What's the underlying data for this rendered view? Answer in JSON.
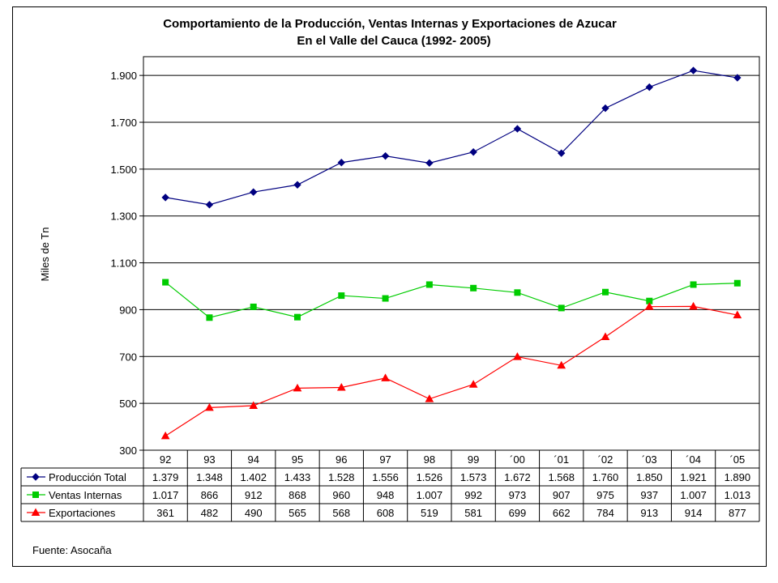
{
  "chart_data": {
    "type": "line",
    "title_line1": "Comportamiento de la Producción, Ventas Internas y Exportaciones de Azucar",
    "title_line2": "En el Valle del Cauca (1992- 2005)",
    "ylabel": "Miles de Tn",
    "ylim": [
      300,
      1900
    ],
    "yticks": [
      "300",
      "500",
      "700",
      "900",
      "1.100",
      "1.300",
      "1.500",
      "1.700",
      "1.900"
    ],
    "ytick_values": [
      300,
      500,
      700,
      900,
      1100,
      1300,
      1500,
      1700,
      1900
    ],
    "grid": true,
    "categories": [
      "92",
      "93",
      "94",
      "95",
      "96",
      "97",
      "98",
      "99",
      "´00",
      "´01",
      "´02",
      "´03",
      "´04",
      "´05"
    ],
    "series": [
      {
        "name": "Producción Total",
        "color": "#000080",
        "marker": "diamond",
        "values": [
          1379,
          1348,
          1402,
          1433,
          1528,
          1556,
          1526,
          1573,
          1672,
          1568,
          1760,
          1850,
          1921,
          1890
        ],
        "labels": [
          "1.379",
          "1.348",
          "1.402",
          "1.433",
          "1.528",
          "1.556",
          "1.526",
          "1.573",
          "1.672",
          "1.568",
          "1.760",
          "1.850",
          "1.921",
          "1.890"
        ]
      },
      {
        "name": "Ventas Internas",
        "color": "#00cc00",
        "marker": "square",
        "values": [
          1017,
          866,
          912,
          868,
          960,
          948,
          1007,
          992,
          973,
          907,
          975,
          937,
          1007,
          1013
        ],
        "labels": [
          "1.017",
          "866",
          "912",
          "868",
          "960",
          "948",
          "1.007",
          "992",
          "973",
          "907",
          "975",
          "937",
          "1.007",
          "1.013"
        ]
      },
      {
        "name": "Exportaciones",
        "color": "#ff0000",
        "marker": "triangle",
        "values": [
          361,
          482,
          490,
          565,
          568,
          608,
          519,
          581,
          699,
          662,
          784,
          913,
          914,
          877
        ],
        "labels": [
          "361",
          "482",
          "490",
          "565",
          "568",
          "608",
          "519",
          "581",
          "699",
          "662",
          "784",
          "913",
          "914",
          "877"
        ]
      }
    ],
    "legend": "data-table"
  },
  "source_note": "Fuente:  Asocaña"
}
